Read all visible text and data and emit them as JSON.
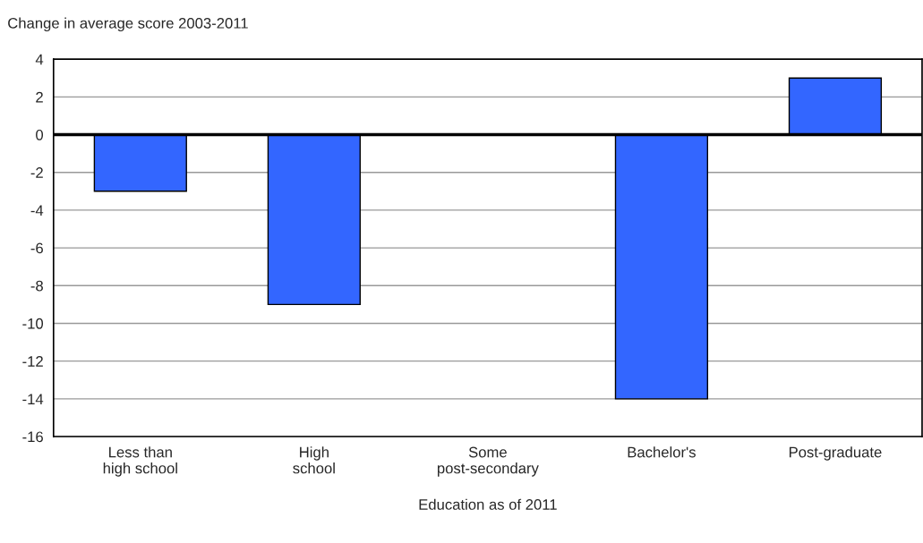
{
  "chart_data": {
    "type": "bar",
    "ylabel": "Change in average score 2003-2011",
    "xlabel": "Education as of 2011",
    "categories": [
      "Less than\nhigh school",
      "High\nschool",
      "Some\npost-secondary",
      "Bachelor's",
      "Post-graduate"
    ],
    "values": [
      -3,
      -9,
      null,
      -14,
      3
    ],
    "color": "#3366ff",
    "ylim": [
      -16,
      4
    ],
    "yticks": [
      -16,
      -14,
      -12,
      -10,
      -8,
      -6,
      -4,
      -2,
      0,
      2,
      4
    ],
    "grid": "y",
    "ref_lines": [
      {
        "axis": "y",
        "value": 0,
        "color": "#000000"
      }
    ]
  }
}
